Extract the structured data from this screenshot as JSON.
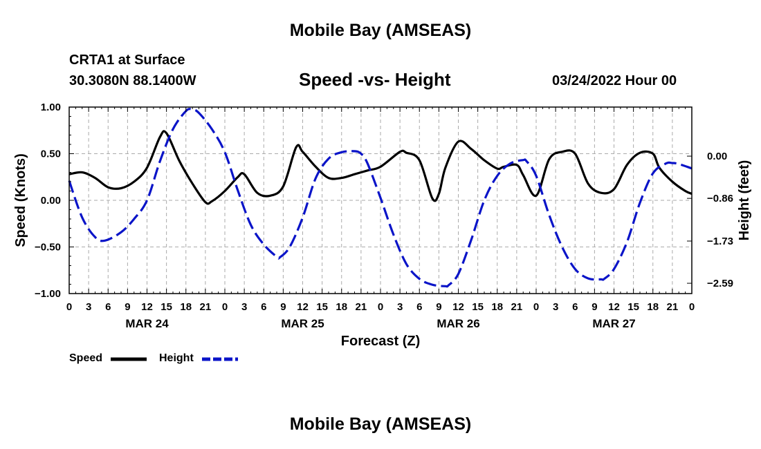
{
  "page": {
    "main_title": "Mobile Bay (AMSEAS)",
    "station": "CRTA1 at Surface",
    "coords": "30.3080N  88.1400W",
    "date": "03/24/2022 Hour 00",
    "footer_title": "Mobile Bay (AMSEAS)"
  },
  "colors": {
    "speed": "#000000",
    "height": "#0a14c8",
    "grid": "#aaaaaa"
  },
  "chart_data": {
    "type": "line",
    "title": "Speed -vs- Height",
    "xlabel": "Forecast (Z)",
    "ylabel": "Speed (Knots)",
    "y2label": "Height (feet)",
    "x_range": [
      0,
      96
    ],
    "ylim": [
      -1.0,
      1.0
    ],
    "y_ticks": [
      1.0,
      0.5,
      0.0,
      -0.5,
      -1.0
    ],
    "y_tick_labels": [
      "1.00",
      "0.50",
      "0.00",
      "−0.50",
      "−1.00"
    ],
    "y2lim": [
      -2.8,
      1.0
    ],
    "y2_ticks": [
      0.0,
      -0.86,
      -1.73,
      -2.59
    ],
    "y2_tick_labels": [
      "0.00",
      "−0.86",
      "−1.73",
      "−2.59"
    ],
    "x_ticks": [
      0,
      3,
      6,
      9,
      12,
      15,
      18,
      21,
      24,
      27,
      30,
      33,
      36,
      39,
      42,
      45,
      48,
      51,
      54,
      57,
      60,
      63,
      66,
      69,
      72,
      75,
      78,
      81,
      84,
      87,
      90,
      93,
      96
    ],
    "x_tick_labels": [
      "0",
      "3",
      "6",
      "9",
      "12",
      "15",
      "18",
      "21",
      "0",
      "3",
      "6",
      "9",
      "12",
      "15",
      "18",
      "21",
      "0",
      "3",
      "6",
      "9",
      "12",
      "15",
      "18",
      "21",
      "0",
      "3",
      "6",
      "9",
      "12",
      "15",
      "18",
      "21",
      "0"
    ],
    "day_labels": [
      {
        "x": 12,
        "label": "MAR 24"
      },
      {
        "x": 36,
        "label": "MAR 25"
      },
      {
        "x": 60,
        "label": "MAR 26"
      },
      {
        "x": 84,
        "label": "MAR 27"
      }
    ],
    "legend": [
      {
        "name": "Speed",
        "style": "solid"
      },
      {
        "name": "Height",
        "style": "dashed"
      }
    ],
    "series": [
      {
        "name": "Speed",
        "axis": "left",
        "style": "solid",
        "x": [
          0,
          2,
          4,
          6,
          8,
          10,
          12,
          14,
          15,
          17,
          19,
          21,
          22,
          24,
          26,
          27,
          29,
          31,
          33,
          35,
          36,
          38,
          40,
          42,
          44,
          46,
          48,
          51,
          52,
          54,
          56,
          57,
          58,
          60,
          62,
          64,
          66,
          67,
          69,
          70,
          72,
          74,
          76,
          78,
          80,
          82,
          84,
          86,
          88,
          90,
          91,
          93,
          95,
          96
        ],
        "y": [
          0.28,
          0.3,
          0.24,
          0.14,
          0.13,
          0.2,
          0.35,
          0.68,
          0.72,
          0.42,
          0.18,
          -0.02,
          -0.01,
          0.1,
          0.25,
          0.28,
          0.08,
          0.05,
          0.15,
          0.57,
          0.52,
          0.36,
          0.24,
          0.24,
          0.28,
          0.32,
          0.36,
          0.52,
          0.51,
          0.43,
          0.02,
          0.07,
          0.35,
          0.63,
          0.55,
          0.43,
          0.34,
          0.36,
          0.38,
          0.27,
          0.05,
          0.44,
          0.52,
          0.5,
          0.18,
          0.08,
          0.12,
          0.38,
          0.51,
          0.5,
          0.35,
          0.2,
          0.1,
          0.07
        ]
      },
      {
        "name": "Height",
        "axis": "right",
        "style": "dashed",
        "x": [
          0,
          2,
          4,
          5.5,
          8,
          10,
          12,
          14,
          16,
          18,
          19,
          20,
          22,
          24,
          26,
          28,
          30,
          32,
          32.5,
          34,
          36,
          38,
          40,
          42,
          44,
          45,
          46,
          48,
          50,
          52,
          54,
          56,
          58,
          58.5,
          60,
          62,
          64,
          66,
          68,
          70,
          70.5,
          72,
          74,
          76,
          78,
          80,
          82,
          82.5,
          84,
          86,
          88,
          90,
          92,
          93,
          94,
          96
        ],
        "y": [
          -0.5,
          -1.25,
          -1.65,
          -1.72,
          -1.55,
          -1.28,
          -0.9,
          -0.1,
          0.55,
          0.92,
          0.95,
          0.88,
          0.55,
          0.08,
          -0.7,
          -1.4,
          -1.8,
          -2.05,
          -2.06,
          -1.85,
          -1.25,
          -0.45,
          -0.05,
          0.08,
          0.1,
          0.05,
          -0.15,
          -0.85,
          -1.6,
          -2.2,
          -2.5,
          -2.62,
          -2.65,
          -2.63,
          -2.4,
          -1.7,
          -0.9,
          -0.4,
          -0.15,
          -0.08,
          -0.1,
          -0.4,
          -1.2,
          -1.85,
          -2.3,
          -2.49,
          -2.51,
          -2.5,
          -2.3,
          -1.75,
          -0.95,
          -0.35,
          -0.15,
          -0.14,
          -0.16,
          -0.25
        ]
      }
    ]
  }
}
